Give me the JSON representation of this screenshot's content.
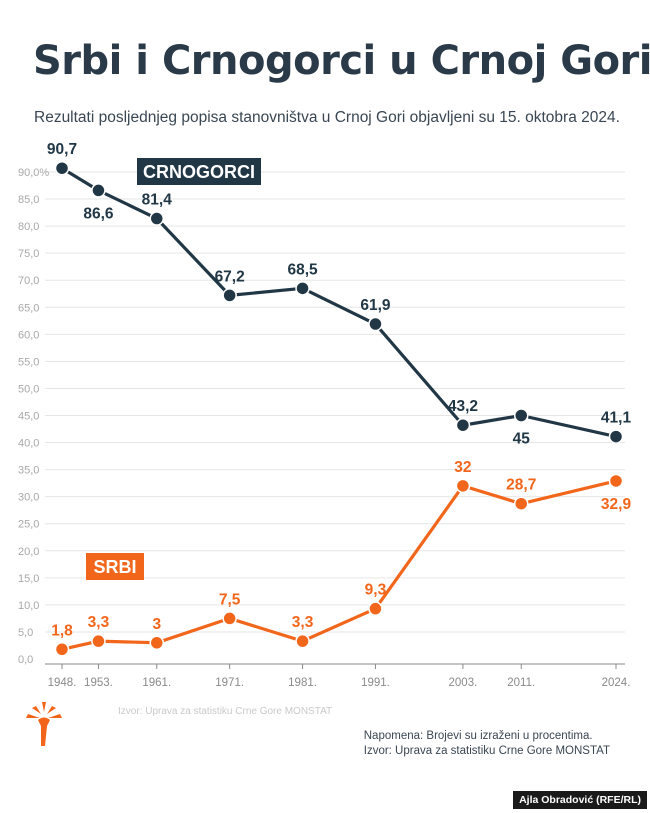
{
  "title": "Srbi i Crnogorci u Crnoj Gori",
  "subtitle": "Rezultati posljednjeg popisa stanovništva u Crnoj Gori objavljeni su 15. oktobra 2024.",
  "note": "Napomena: Brojevi su izraženi u procentima.",
  "source": "Izvor: Uprava za statistiku Crne Gore MONSTAT",
  "faded_source": "Izvor: Uprava za statistiku Crne Gore MONSTAT",
  "credit": "Ajla Obradović (RFE/RL)",
  "colors": {
    "crnogorci": "#223746",
    "srbi": "#f2661c",
    "grid": "#e6e6e6",
    "tick": "#a8a8a8"
  },
  "chart_data": {
    "type": "line",
    "title": "Srbi i Crnogorci u Crnoj Gori",
    "x": [
      1948,
      1953,
      1961,
      1971,
      1981,
      1991,
      2003,
      2011,
      2024
    ],
    "xtick_labels": [
      "1948.",
      "1953.",
      "1961.",
      "1971.",
      "1981.",
      "1991.",
      "2003.",
      "2011.",
      "2024."
    ],
    "ylim": [
      0,
      90
    ],
    "yticks": [
      0,
      5,
      10,
      15,
      20,
      25,
      30,
      35,
      40,
      45,
      50,
      55,
      60,
      65,
      70,
      75,
      80,
      85,
      90
    ],
    "ytick_labels": [
      "0,0",
      "5,0",
      "10,0",
      "15,0",
      "20,0",
      "25,0",
      "30,0",
      "35,0",
      "40,0",
      "45,0",
      "50,0",
      "55,0",
      "60,0",
      "65,0",
      "70,0",
      "75,0",
      "80,0",
      "85,0",
      "90,0%"
    ],
    "grid": true,
    "series": [
      {
        "name": "CRNOGORCI",
        "values": [
          90.7,
          86.6,
          81.4,
          67.2,
          68.5,
          61.9,
          43.2,
          45,
          41.1
        ],
        "labels": [
          "90,7",
          "86,6",
          "81,4",
          "67,2",
          "68,5",
          "61,9",
          "43,2",
          "45",
          "41,1"
        ],
        "label_pos": [
          "above",
          "below",
          "above",
          "above",
          "above",
          "above",
          "above",
          "below",
          "above"
        ]
      },
      {
        "name": "SRBI",
        "values": [
          1.8,
          3.3,
          3,
          7.5,
          3.3,
          9.3,
          32,
          28.7,
          32.9
        ],
        "labels": [
          "1,8",
          "3,3",
          "3",
          "7,5",
          "3,3",
          "9,3",
          "32",
          "28,7",
          "32,9"
        ],
        "label_pos": [
          "above",
          "above",
          "above",
          "above",
          "above",
          "above",
          "above",
          "above",
          "below"
        ]
      }
    ]
  }
}
